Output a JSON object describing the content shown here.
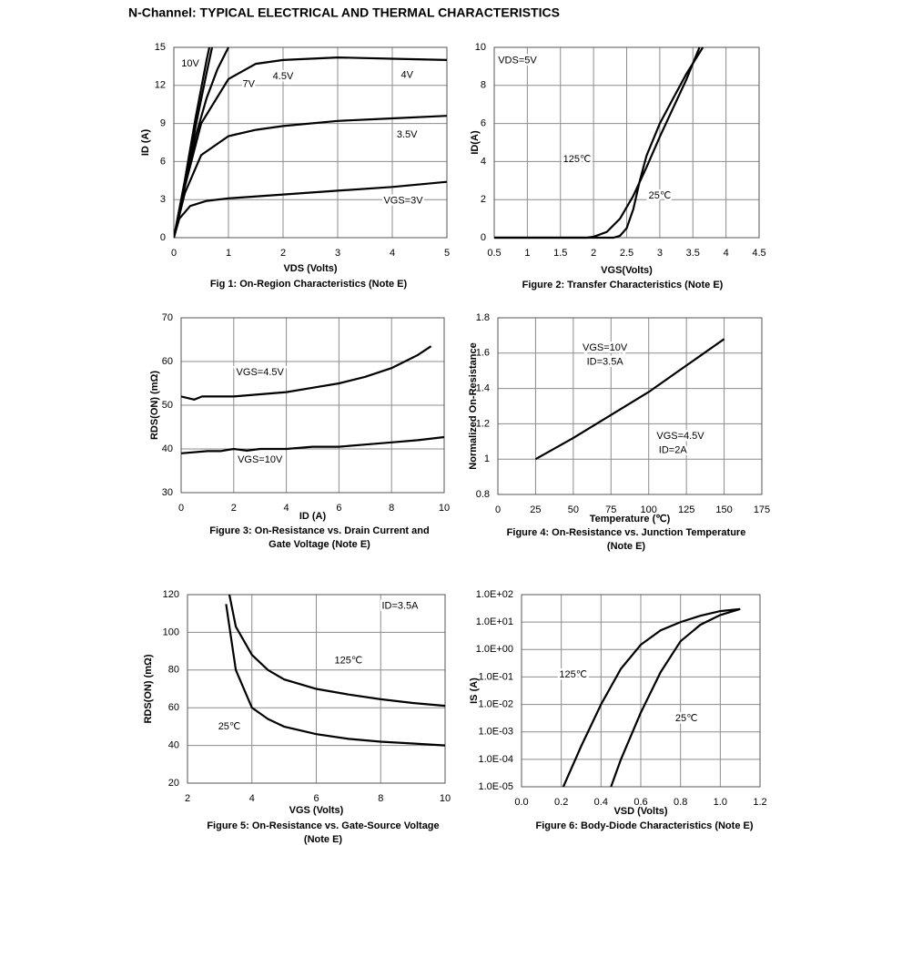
{
  "title": "N-Channel: TYPICAL ELECTRICAL AND THERMAL CHARACTERISTICS",
  "chart_data": [
    {
      "type": "line",
      "title": [
        "Fig 1: On-Region Characteristics (Note E)"
      ],
      "xlabel": "VDS (Volts)",
      "ylabel": "ID (A)",
      "xlim": [
        0,
        5
      ],
      "xticks": [
        0,
        1,
        2,
        3,
        4,
        5
      ],
      "ylim": [
        0,
        15
      ],
      "yticks": [
        0,
        3,
        6,
        9,
        12,
        15
      ],
      "grid": true,
      "series": [
        {
          "color": "#000000",
          "x": [
            0,
            0.2,
            0.4,
            0.6,
            0.65
          ],
          "values": [
            0,
            4.5,
            9.5,
            14,
            15
          ]
        },
        {
          "color": "#000000",
          "x": [
            0,
            0.2,
            0.4,
            0.6,
            0.7
          ],
          "values": [
            0,
            4.2,
            8.8,
            13,
            15
          ]
        },
        {
          "color": "#000000",
          "x": [
            0,
            0.2,
            0.4,
            0.6,
            0.8,
            1.0
          ],
          "values": [
            0,
            4,
            8,
            11,
            13.3,
            15
          ]
        },
        {
          "color": "#000000",
          "x": [
            0,
            0.2,
            0.5,
            1,
            1.5,
            2,
            3,
            4,
            5
          ],
          "values": [
            0,
            4,
            9,
            12.5,
            13.7,
            14,
            14.2,
            14.1,
            14
          ]
        },
        {
          "color": "#000000",
          "x": [
            0,
            0.2,
            0.5,
            1,
            1.5,
            2,
            3,
            4,
            5
          ],
          "values": [
            0,
            3.5,
            6.5,
            8,
            8.5,
            8.8,
            9.2,
            9.4,
            9.6
          ]
        },
        {
          "color": "#000000",
          "x": [
            0,
            0.1,
            0.3,
            0.6,
            1,
            2,
            3,
            4,
            5
          ],
          "values": [
            0,
            1.5,
            2.5,
            2.9,
            3.1,
            3.4,
            3.7,
            4.0,
            4.4
          ]
        }
      ],
      "annotations": [
        {
          "text": "10V",
          "x": 0.3,
          "y": 13.7
        },
        {
          "text": "7V",
          "x": 1.37,
          "y": 12.1
        },
        {
          "text": "4.5V",
          "x": 2.0,
          "y": 12.7
        },
        {
          "text": "4V",
          "x": 4.27,
          "y": 12.8
        },
        {
          "text": "3.5V",
          "x": 4.27,
          "y": 8.1
        },
        {
          "text": "VGS=3V",
          "x": 4.2,
          "y": 2.9
        }
      ]
    },
    {
      "type": "line",
      "title": [
        "Figure 2: Transfer Characteristics (Note E)"
      ],
      "xlabel": "VGS(Volts)",
      "ylabel": "ID(A)",
      "xlim": [
        0.5,
        4.5
      ],
      "xticks": [
        0.5,
        1,
        1.5,
        2,
        2.5,
        3,
        3.5,
        4,
        4.5
      ],
      "ylim": [
        0,
        10
      ],
      "yticks": [
        0,
        2,
        4,
        6,
        8,
        10
      ],
      "grid": true,
      "series": [
        {
          "color": "#000000",
          "x": [
            0.5,
            1.9,
            2.0,
            2.2,
            2.4,
            2.6,
            2.8,
            3,
            3.2,
            3.4,
            3.6
          ],
          "values": [
            0,
            0,
            0.05,
            0.3,
            1,
            2.2,
            3.7,
            5.3,
            6.8,
            8.3,
            10
          ]
        },
        {
          "color": "#000000",
          "x": [
            0.5,
            2.3,
            2.4,
            2.5,
            2.6,
            2.7,
            2.8,
            3,
            3.2,
            3.4,
            3.65
          ],
          "values": [
            0,
            0,
            0.1,
            0.5,
            1.5,
            3,
            4.3,
            6,
            7.3,
            8.6,
            10
          ]
        }
      ],
      "annotations": [
        {
          "text": "VDS=5V",
          "x": 0.85,
          "y": 9.3
        },
        {
          "text": "125℃",
          "x": 1.75,
          "y": 4.1
        },
        {
          "text": "25℃",
          "x": 3.0,
          "y": 2.2
        }
      ]
    },
    {
      "type": "line",
      "title": [
        "Figure 3: On-Resistance vs. Drain Current and",
        "Gate Voltage (Note E)"
      ],
      "xlabel": "ID (A)",
      "ylabel": "RDS(ON) (mΩ)",
      "xlim": [
        0,
        10
      ],
      "xticks": [
        0,
        2,
        4,
        6,
        8,
        10
      ],
      "ylim": [
        30,
        70
      ],
      "yticks": [
        30,
        40,
        50,
        60,
        70
      ],
      "grid": true,
      "series": [
        {
          "color": "#000000",
          "x": [
            0,
            0.5,
            0.8,
            1,
            2,
            3,
            4,
            5,
            6,
            7,
            8,
            9,
            9.5
          ],
          "values": [
            52,
            51.3,
            52,
            52,
            52,
            52.5,
            53,
            54,
            55,
            56.5,
            58.5,
            61.5,
            63.5
          ]
        },
        {
          "color": "#000000",
          "x": [
            0,
            1,
            1.5,
            2,
            2.5,
            3,
            4,
            5,
            6,
            7,
            8,
            9,
            10
          ],
          "values": [
            39,
            39.5,
            39.5,
            40,
            39.6,
            40,
            40,
            40.5,
            40.5,
            41,
            41.5,
            42,
            42.7
          ]
        }
      ],
      "annotations": [
        {
          "text": "VGS=4.5V",
          "x": 3.0,
          "y": 57.5
        },
        {
          "text": "VGS=10V",
          "x": 3.0,
          "y": 37.5
        }
      ]
    },
    {
      "type": "line",
      "title": [
        "Figure 4: On-Resistance vs. Junction Temperature",
        "(Note E)"
      ],
      "xlabel": "Temperature (℃)",
      "ylabel": "Normalized On-Resistance",
      "xlim": [
        0,
        175
      ],
      "xticks": [
        0,
        25,
        50,
        75,
        100,
        125,
        150,
        175
      ],
      "ylim": [
        0.8,
        1.8
      ],
      "yticks": [
        0.8,
        1,
        1.2,
        1.4,
        1.6,
        1.8
      ],
      "grid": true,
      "series": [
        {
          "color": "#000000",
          "x": [
            25,
            50,
            75,
            100,
            125,
            150
          ],
          "values": [
            1,
            1.12,
            1.25,
            1.38,
            1.53,
            1.68
          ]
        }
      ],
      "annotations": [
        {
          "text": "VGS=10V",
          "x": 71,
          "y": 1.63
        },
        {
          "text": "ID=3.5A",
          "x": 71,
          "y": 1.55
        },
        {
          "text": "VGS=4.5V",
          "x": 121,
          "y": 1.13
        },
        {
          "text": "ID=2A",
          "x": 116,
          "y": 1.05
        }
      ]
    },
    {
      "type": "line",
      "title": [
        "Figure 5: On-Resistance vs. Gate-Source Voltage",
        "(Note E)"
      ],
      "xlabel": "VGS (Volts)",
      "ylabel": "RDS(ON) (mΩ)",
      "xlim": [
        2,
        10
      ],
      "xticks": [
        2,
        4,
        6,
        8,
        10
      ],
      "ylim": [
        20,
        120
      ],
      "yticks": [
        20,
        40,
        60,
        80,
        100,
        120
      ],
      "grid": true,
      "series": [
        {
          "color": "#000000",
          "x": [
            3.3,
            3.5,
            4,
            4.5,
            5,
            6,
            7,
            8,
            9,
            10
          ],
          "values": [
            120,
            103,
            88,
            80,
            75,
            70,
            67,
            64.5,
            62.5,
            61
          ]
        },
        {
          "color": "#000000",
          "x": [
            3.2,
            3.5,
            4,
            4.5,
            5,
            6,
            7,
            8,
            9,
            10
          ],
          "values": [
            115,
            80,
            60,
            54,
            50,
            46,
            43.5,
            42,
            41,
            40
          ]
        }
      ],
      "annotations": [
        {
          "text": "ID=3.5A",
          "x": 8.6,
          "y": 114
        },
        {
          "text": "125℃",
          "x": 7.0,
          "y": 85
        },
        {
          "text": "25℃",
          "x": 3.3,
          "y": 50
        }
      ]
    },
    {
      "type": "line",
      "title": [
        "Figure 6: Body-Diode Characteristics (Note E)"
      ],
      "xlabel": "VSD (Volts)",
      "ylabel": "IS (A)",
      "log_y": true,
      "xlim": [
        0,
        1.2
      ],
      "xticks": [
        {
          "value": 0,
          "label": "0.0"
        },
        0.2,
        0.4,
        0.6,
        0.8,
        {
          "value": 1,
          "label": "1.0"
        },
        1.2
      ],
      "ylim": [
        1e-05,
        100
      ],
      "yticks": [
        {
          "value": 1e-05,
          "label": "1.0E-05"
        },
        {
          "value": 0.0001,
          "label": "1.0E-04"
        },
        {
          "value": 0.001,
          "label": "1.0E-03"
        },
        {
          "value": 0.01,
          "label": "1.0E-02"
        },
        {
          "value": 0.1,
          "label": "1.0E-01"
        },
        {
          "value": 1,
          "label": "1.0E+00"
        },
        {
          "value": 10,
          "label": "1.0E+01"
        },
        {
          "value": 100,
          "label": "1.0E+02"
        }
      ],
      "grid": true,
      "series": [
        {
          "color": "#000000",
          "x": [
            0.21,
            0.3,
            0.4,
            0.5,
            0.6,
            0.7,
            0.8,
            0.9,
            1.0,
            1.1
          ],
          "values": [
            1e-05,
            0.0003,
            0.01,
            0.2,
            1.5,
            5,
            10,
            17,
            25,
            30
          ]
        },
        {
          "color": "#000000",
          "x": [
            0.45,
            0.5,
            0.6,
            0.7,
            0.8,
            0.9,
            1.0,
            1.1
          ],
          "values": [
            1e-05,
            0.0001,
            0.005,
            0.15,
            2,
            8,
            18,
            30
          ]
        }
      ],
      "annotations": [
        {
          "text": "125℃",
          "x": 0.26,
          "y": 0.12
        },
        {
          "text": "25℃",
          "x": 0.83,
          "y": 0.003
        }
      ]
    }
  ]
}
